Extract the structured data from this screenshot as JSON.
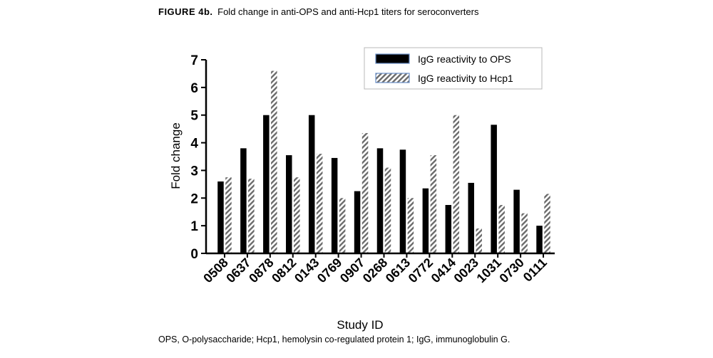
{
  "caption": {
    "label": "FIGURE 4b.",
    "text": "Fold change in anti-OPS and anti-Hcp1 titers for seroconverters"
  },
  "footnote": "OPS, O-polysaccharide; Hcp1, hemolysin co-regulated protein 1; IgG, immunoglobulin G.",
  "colors": {
    "ops": "#000000",
    "hcp1_stripe": "#6b6b6b",
    "background": "#ffffff"
  },
  "chart_data": {
    "type": "bar",
    "title": "",
    "xlabel": "Study ID",
    "ylabel": "Fold change",
    "ylim": [
      0,
      7
    ],
    "yticks": [
      "0",
      "1",
      "2",
      "3",
      "4",
      "5",
      "6",
      "7"
    ],
    "grid": false,
    "legend_position": "top-right",
    "categories": [
      "0508",
      "0637",
      "0878",
      "0812",
      "0143",
      "0769",
      "0907",
      "0268",
      "0613",
      "0772",
      "0414",
      "0023",
      "1031",
      "0730",
      "0111"
    ],
    "series": [
      {
        "name": "IgG reactivity to OPS",
        "pattern": "solid",
        "values": [
          2.6,
          3.8,
          5.0,
          3.55,
          5.0,
          3.45,
          2.25,
          3.8,
          3.75,
          2.35,
          1.75,
          2.55,
          4.65,
          2.3,
          1.0
        ]
      },
      {
        "name": "IgG reactivity to Hcp1",
        "pattern": "hatched",
        "values": [
          2.75,
          2.7,
          6.6,
          2.75,
          3.6,
          2.0,
          4.35,
          3.1,
          2.0,
          3.55,
          5.0,
          0.9,
          1.75,
          1.45,
          2.15
        ]
      }
    ]
  }
}
